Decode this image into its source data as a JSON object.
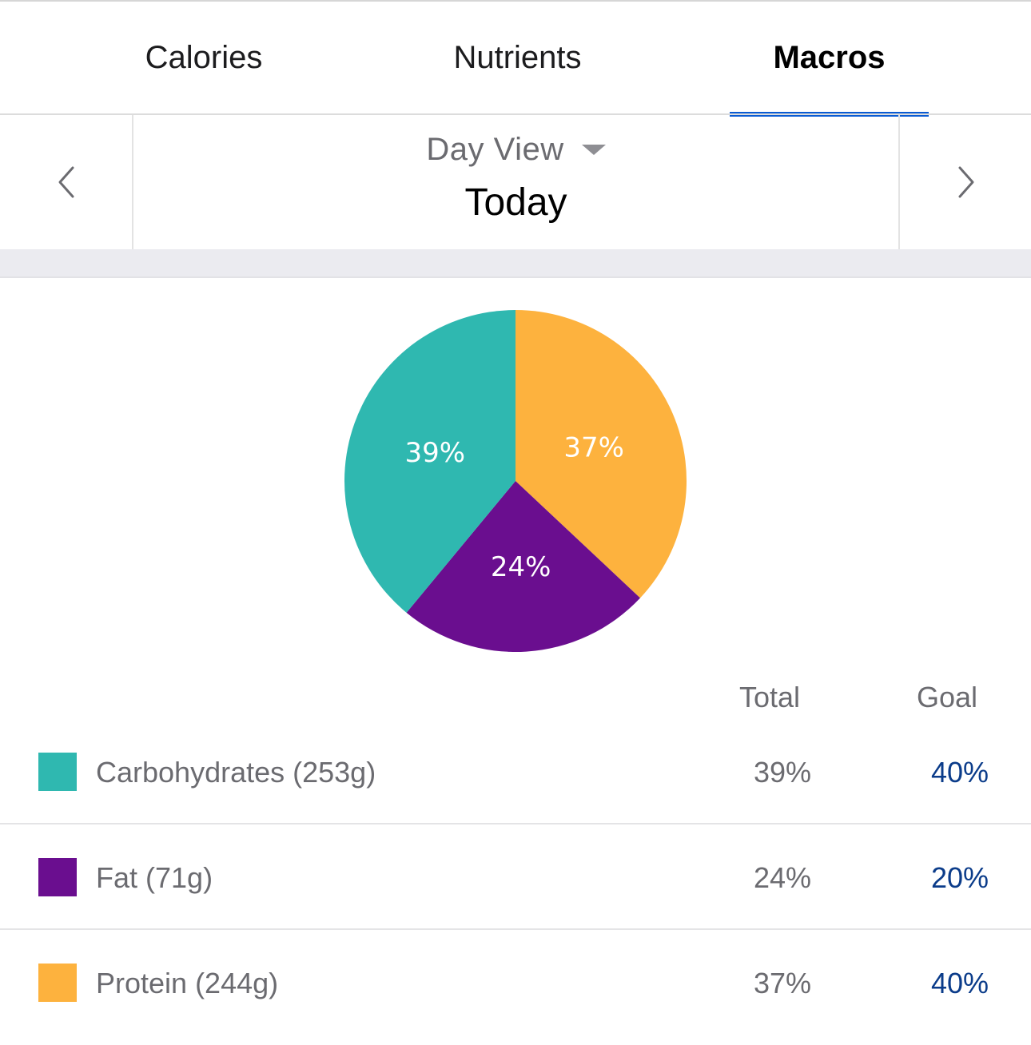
{
  "tabs": [
    {
      "label": "Calories",
      "active": false
    },
    {
      "label": "Nutrients",
      "active": false
    },
    {
      "label": "Macros",
      "active": true
    }
  ],
  "day_nav": {
    "view_label": "Day View",
    "date_label": "Today",
    "prev_icon": "chevron-left-icon",
    "next_icon": "chevron-right-icon",
    "dropdown_icon": "caret-down-icon"
  },
  "colors": {
    "carbohydrates": "#2fb8b0",
    "fat": "#6a0e8f",
    "protein": "#fdb23e",
    "accent": "#0a5bd3",
    "goal_text": "#0b3c8a"
  },
  "chart_data": {
    "type": "pie",
    "slices": [
      {
        "name": "Carbohydrates",
        "value": 39,
        "label": "39%",
        "color": "#2fb8b0"
      },
      {
        "name": "Fat",
        "value": 24,
        "label": "24%",
        "color": "#6a0e8f"
      },
      {
        "name": "Protein",
        "value": 37,
        "label": "37%",
        "color": "#fdb23e"
      }
    ]
  },
  "table": {
    "headers": {
      "total": "Total",
      "goal": "Goal"
    },
    "rows": [
      {
        "name": "Carbohydrates (253g)",
        "total": "39%",
        "goal": "40%",
        "color": "#2fb8b0"
      },
      {
        "name": "Fat (71g)",
        "total": "24%",
        "goal": "20%",
        "color": "#6a0e8f"
      },
      {
        "name": "Protein (244g)",
        "total": "37%",
        "goal": "40%",
        "color": "#fdb23e"
      }
    ]
  }
}
